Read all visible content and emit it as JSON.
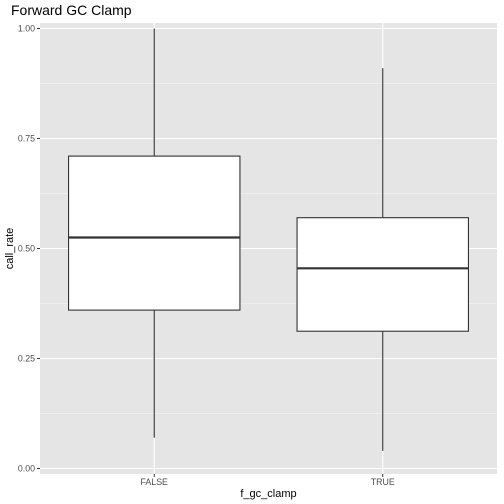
{
  "chart_data": {
    "type": "boxplot",
    "title": "Forward GC Clamp",
    "xlabel": "f_gc_clamp",
    "ylabel": "call_rate",
    "categories": [
      "FALSE",
      "TRUE"
    ],
    "boxes": [
      {
        "category": "FALSE",
        "min": 0.07,
        "q1": 0.36,
        "median": 0.525,
        "q3": 0.71,
        "max": 1.0
      },
      {
        "category": "TRUE",
        "min": 0.04,
        "q1": 0.312,
        "median": 0.455,
        "q3": 0.57,
        "max": 0.91
      }
    ],
    "y_ticks": [
      "0.00",
      "0.25",
      "0.50",
      "0.75",
      "1.00"
    ],
    "ylim": [
      -0.0125,
      1.0125
    ],
    "grid": true,
    "legend": "none",
    "colors": {
      "panel": "#e5e5e5",
      "grid_major": "#ffffff",
      "box_fill": "#ffffff",
      "box_stroke": "#333333",
      "tick_text": "#4d4d4d"
    }
  }
}
